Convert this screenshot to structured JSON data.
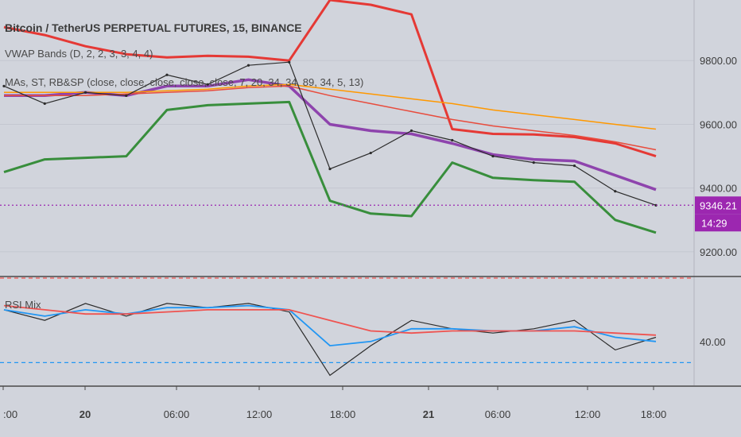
{
  "header": {
    "symbol_title": "Bitcoin / TetherUS PERPETUAL FUTURES, 15, BINANCE",
    "indicator_vwap": "VWAP Bands (D, 2, 2, 3, 3, 4, 4)",
    "indicator_mas": "MAs, ST, RB&SP (close, close, close, close, close, 7, 20, 34, 34, 89, 34, 5, 13)",
    "indicator_rsi": "RSI Mix"
  },
  "price_axis": {
    "ticks": [
      "9800.00",
      "9600.00",
      "9400.00",
      "9200.00"
    ],
    "tick_values": [
      9800,
      9600,
      9400,
      9200
    ],
    "last_price_label": "9346.21",
    "countdown_label": "14:29",
    "badge_color": "#9c27b0"
  },
  "rsi_axis": {
    "ticks": [
      "40.00"
    ],
    "tick_values": [
      40
    ]
  },
  "time_axis": {
    "ticks": [
      ":00",
      "20",
      "06:00",
      "12:00",
      "18:00",
      "21",
      "06:00",
      "12:00",
      "18:00"
    ],
    "bold_ticks": [
      "20",
      "21"
    ]
  },
  "colors": {
    "background": "#d1d4dc",
    "text": "#3c3c3c",
    "vwap_upper": "#e53935",
    "vwap_lower": "#388e3c",
    "ma_purple": "#8e44ad",
    "ma_blue": "#2196f3",
    "ma_orange": "#ff9800",
    "ma_red": "#e84c3d",
    "last_price_line": "#9c27b0",
    "rsi_line": "#2b2b2b",
    "rsi_fast": "#2196f3",
    "rsi_slow": "#ef5350"
  },
  "chart_data": {
    "type": "line",
    "price_range": [
      9130,
      9990
    ],
    "rsi_range": [
      20,
      70
    ],
    "last_price": 9346.21,
    "rsi_upper_level": 70,
    "rsi_lower_level": 30,
    "time_labels": [
      ":00",
      "20",
      "06:00",
      "12:00",
      "18:00",
      "21",
      "06:00",
      "12:00",
      "18:00"
    ],
    "price_series": [
      {
        "name": "VWAP upper",
        "values": [
          9905,
          9880,
          9845,
          9820,
          9810,
          9815,
          9812,
          9800,
          9990,
          9975,
          9945,
          9585,
          9570,
          9568,
          9560,
          9540,
          9500
        ]
      },
      {
        "name": "VWAP lower",
        "values": [
          9450,
          9490,
          9495,
          9500,
          9645,
          9660,
          9665,
          9670,
          9360,
          9320,
          9312,
          9480,
          9432,
          9425,
          9420,
          9300,
          9260
        ]
      },
      {
        "name": "MA purple",
        "values": [
          9690,
          9690,
          9700,
          9690,
          9720,
          9720,
          9740,
          9720,
          9600,
          9580,
          9570,
          9540,
          9505,
          9490,
          9485,
          9440,
          9395
        ]
      },
      {
        "name": "MA orange",
        "values": [
          9700,
          9700,
          9700,
          9700,
          9705,
          9710,
          9720,
          9725,
          9710,
          9695,
          9680,
          9665,
          9645,
          9630,
          9615,
          9600,
          9585
        ]
      },
      {
        "name": "MA red",
        "values": [
          9690,
          9690,
          9690,
          9695,
          9700,
          9705,
          9715,
          9720,
          9690,
          9665,
          9640,
          9615,
          9595,
          9580,
          9565,
          9545,
          9520
        ]
      }
    ],
    "close_series": {
      "name": "Price",
      "values": [
        9720,
        9665,
        9700,
        9690,
        9755,
        9725,
        9785,
        9795,
        9460,
        9510,
        9580,
        9550,
        9500,
        9480,
        9470,
        9390,
        9346
      ]
    },
    "rsi_series": [
      {
        "name": "RSI",
        "values": [
          55,
          50,
          58,
          52,
          58,
          56,
          58,
          54,
          24,
          38,
          50,
          46,
          44,
          46,
          50,
          36,
          42
        ]
      },
      {
        "name": "RSI fast",
        "values": [
          55,
          52,
          55,
          53,
          56,
          56,
          57,
          55,
          38,
          40,
          46,
          46,
          45,
          45,
          47,
          42,
          40
        ]
      },
      {
        "name": "RSI slow",
        "values": [
          57,
          55,
          53,
          53,
          54,
          55,
          55,
          55,
          50,
          45,
          44,
          45,
          45,
          45,
          45,
          44,
          43
        ]
      }
    ]
  }
}
